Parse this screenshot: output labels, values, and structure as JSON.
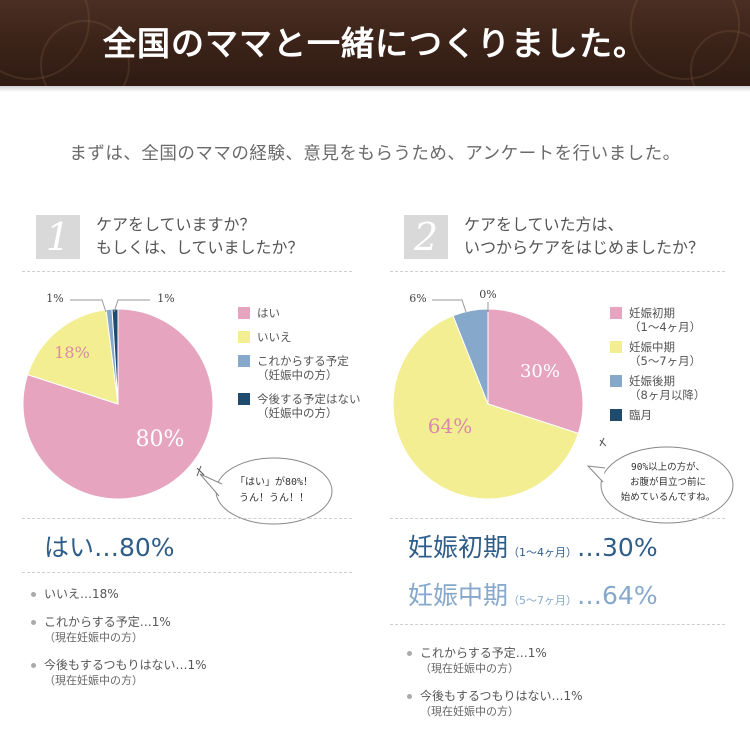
{
  "header": {
    "title": "全国のママと一緒につくりました。"
  },
  "intro": "まずは、全国のママの経験、意見をもらうため、アンケートを行いました。",
  "colors": {
    "pink": "#e6a4bf",
    "yellow": "#f2ee91",
    "lightblue": "#86a8cb",
    "navy": "#1f4b6e",
    "accent": "#2f5d8a"
  },
  "q1": {
    "number": "1",
    "line1": "ケアをしていますか？",
    "line2": "もしくは、していましたか？",
    "legend": [
      {
        "label": "はい",
        "color": "#e6a4bf"
      },
      {
        "label": "いいえ",
        "color": "#f2ee91"
      },
      {
        "label": "これからする予定",
        "sub": "（妊娠中の方）",
        "color": "#86a8cb"
      },
      {
        "label": "今後する予定はない",
        "sub": "（妊娠中の方）",
        "color": "#1f4b6e"
      }
    ],
    "bubble": {
      "line1": "「はい」が80%！",
      "line2": "うん！うん！！"
    },
    "summary": {
      "main": "はい…80%"
    },
    "bullets": [
      {
        "text": "いいえ…18%"
      },
      {
        "text": "これからする予定…1%",
        "note": "（現在妊娠中の方）"
      },
      {
        "text": "今後もするつもりはない…1%",
        "note": "（現在妊娠中の方）"
      }
    ]
  },
  "q2": {
    "number": "2",
    "line1": "ケアをしていた方は、",
    "line2": "いつからケアをはじめましたか？",
    "legend": [
      {
        "label": "妊娠初期",
        "sub": "（1〜4ヶ月）",
        "color": "#e6a4bf"
      },
      {
        "label": "妊娠中期",
        "sub": "（5〜7ヶ月）",
        "color": "#f2ee91"
      },
      {
        "label": "妊娠後期",
        "sub": "（8ヶ月以降）",
        "color": "#86a8cb"
      },
      {
        "label": "臨月",
        "color": "#1f4b6e"
      }
    ],
    "bubble": {
      "line1": "90%以上の方が、",
      "line2": "お腹が目立つ前に",
      "line3": "始めているんですね。"
    },
    "summary1": {
      "main1": "妊娠初期",
      "range": "（1〜4ヶ月）",
      "main2": "…30%"
    },
    "summary2": {
      "main1": "妊娠中期",
      "range": "（5〜7ヶ月）",
      "main2": "…64%"
    },
    "bullets": [
      {
        "text": "これからする予定…1%",
        "note": "（現在妊娠中の方）"
      },
      {
        "text": "今後もするつもりはない…1%",
        "note": "（現在妊娠中の方）"
      }
    ]
  },
  "chart_data": [
    {
      "type": "pie",
      "categories": [
        "はい",
        "いいえ",
        "これからする予定（妊娠中の方）",
        "今後する予定はない（妊娠中の方）"
      ],
      "values": [
        80,
        18,
        1,
        1
      ],
      "labels": [
        "80%",
        "18%",
        "1%",
        "1%"
      ],
      "colors": [
        "#e6a4bf",
        "#f2ee91",
        "#86a8cb",
        "#1f4b6e"
      ],
      "legend": "right"
    },
    {
      "type": "pie",
      "categories": [
        "妊娠初期（1〜4ヶ月）",
        "妊娠中期（5〜7ヶ月）",
        "妊娠後期（8ヶ月以降）",
        "臨月"
      ],
      "values": [
        30,
        64,
        6,
        0
      ],
      "labels": [
        "30%",
        "64%",
        "6%",
        "0%"
      ],
      "colors": [
        "#e6a4bf",
        "#f2ee91",
        "#86a8cb",
        "#1f4b6e"
      ],
      "legend": "right"
    }
  ]
}
